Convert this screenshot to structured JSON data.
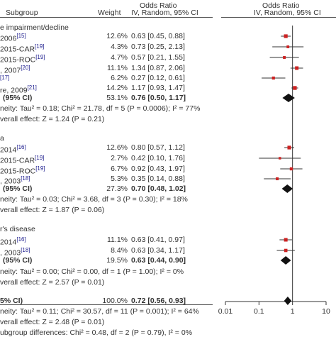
{
  "header": {
    "col_subgroup": "Subgroup",
    "col_weight": "Weight",
    "col_or_title": "Odds Ratio",
    "col_or_sub": "IV, Random, 95% CI",
    "col_plot_title": "Odds Ratio",
    "col_plot_sub": "IV, Random, 95% CI"
  },
  "groups": [
    {
      "title": "e impairment/decline",
      "studies": [
        {
          "label": " 2006",
          "ref": "[15]",
          "weight": "12.6%",
          "ci": "0.63 [0.45, 0.88]"
        },
        {
          "label": " 2015-CAR",
          "ref": "[19]",
          "weight": "4.3%",
          "ci": "0.73 [0.25, 2.13]"
        },
        {
          "label": " 2015-ROC",
          "ref": "[19]",
          "weight": "4.7%",
          "ci": "0.57 [0.21, 1.55]"
        },
        {
          "label": ", 2007",
          "ref": "[20]",
          "weight": "11.1%",
          "ci": "1.34 [0.87, 2.06]"
        },
        {
          "label": "",
          "ref": "[17]",
          "weight": "6.2%",
          "ci": "0.27 [0.12, 0.61]"
        },
        {
          "label": "re, 2009",
          "ref": "[21]",
          "weight": "14.2%",
          "ci": "1.17 [0.93, 1.47]"
        }
      ],
      "subtotal": {
        "label": "(95% CI)",
        "weight": "53.1%",
        "ci": "0.76 [0.50, 1.17]"
      },
      "heterogeneity": "neity: Tau² = 0.18; Chi² = 21.78, df = 5 (P = 0.0006); I² = 77%",
      "overall": "verall effect: Z = 1.24 (P = 0.21)"
    },
    {
      "title": "a",
      "studies": [
        {
          "label": "2014",
          "ref": "[16]",
          "weight": "12.6%",
          "ci": "0.80 [0.57, 1.12]"
        },
        {
          "label": " 2015-CAR",
          "ref": "[19]",
          "weight": "2.7%",
          "ci": "0.42 [0.10, 1.76]"
        },
        {
          "label": " 2015-ROC",
          "ref": "[19]",
          "weight": "6.7%",
          "ci": "0.92 [0.43, 1.97]"
        },
        {
          "label": ", 2003",
          "ref": "[18]",
          "weight": "5.3%",
          "ci": "0.35 [0.14, 0.88]"
        }
      ],
      "subtotal": {
        "label": "(95% CI)",
        "weight": "27.3%",
        "ci": "0.70 [0.48, 1.02]"
      },
      "heterogeneity": "neity: Tau² = 0.03; Chi² = 3.68, df = 3 (P = 0.30); I² = 18%",
      "overall": "verall effect: Z = 1.87 (P = 0.06)"
    },
    {
      "title": "r's disease",
      "studies": [
        {
          "label": "2014",
          "ref": "[16]",
          "weight": "11.1%",
          "ci": "0.63 [0.41, 0.97]"
        },
        {
          "label": ", 2003",
          "ref": "[18]",
          "weight": "8.4%",
          "ci": "0.63 [0.34, 1.17]"
        }
      ],
      "subtotal": {
        "label": "(95% CI)",
        "weight": "19.5%",
        "ci": "0.63 [0.44, 0.90]"
      },
      "heterogeneity": "neity: Tau² = 0.00; Chi² = 0.00, df = 1 (P = 1.00); I² = 0%",
      "overall": "verall effect: Z = 2.57 (P = 0.01)"
    }
  ],
  "total": {
    "label": "5% CI)",
    "weight": "100.0%",
    "ci": "0.72 [0.56, 0.93]",
    "heterogeneity": "neity: Tau² = 0.11; Chi² = 30.57, df = 11 (P = 0.001); I² = 64%",
    "overall": "verall effect: Z = 2.48 (P = 0.01)",
    "subgroup_diff": "ubgroup differences: Chi² = 0.48, df = 2 (P = 0.79), I² = 0%"
  },
  "chart_data": {
    "type": "forest",
    "scale": "log",
    "xlim": [
      0.01,
      10
    ],
    "tick_labels": [
      "0.01",
      "0.1",
      "1",
      "10"
    ],
    "ticks": [
      0.01,
      0.1,
      1,
      10
    ],
    "reference_line": 1,
    "colors": {
      "study_point": "#cc2222",
      "summary_diamond": "#111111",
      "line": "#333333"
    },
    "studies": [
      {
        "or": 0.63,
        "lo": 0.45,
        "hi": 0.88,
        "weight": 12.6
      },
      {
        "or": 0.73,
        "lo": 0.25,
        "hi": 2.13,
        "weight": 4.3
      },
      {
        "or": 0.57,
        "lo": 0.21,
        "hi": 1.55,
        "weight": 4.7
      },
      {
        "or": 1.34,
        "lo": 0.87,
        "hi": 2.06,
        "weight": 11.1
      },
      {
        "or": 0.27,
        "lo": 0.12,
        "hi": 0.61,
        "weight": 6.2
      },
      {
        "or": 1.17,
        "lo": 0.93,
        "hi": 1.47,
        "weight": 14.2
      },
      {
        "or": 0.8,
        "lo": 0.57,
        "hi": 1.12,
        "weight": 12.6
      },
      {
        "or": 0.42,
        "lo": 0.1,
        "hi": 1.76,
        "weight": 2.7
      },
      {
        "or": 0.92,
        "lo": 0.43,
        "hi": 1.97,
        "weight": 6.7
      },
      {
        "or": 0.35,
        "lo": 0.14,
        "hi": 0.88,
        "weight": 5.3
      },
      {
        "or": 0.63,
        "lo": 0.41,
        "hi": 0.97,
        "weight": 11.1
      },
      {
        "or": 0.63,
        "lo": 0.34,
        "hi": 1.17,
        "weight": 8.4
      }
    ],
    "summaries": [
      {
        "or": 0.76,
        "lo": 0.5,
        "hi": 1.17
      },
      {
        "or": 0.7,
        "lo": 0.48,
        "hi": 1.02
      },
      {
        "or": 0.63,
        "lo": 0.44,
        "hi": 0.9
      },
      {
        "or": 0.72,
        "lo": 0.56,
        "hi": 0.93
      }
    ]
  }
}
